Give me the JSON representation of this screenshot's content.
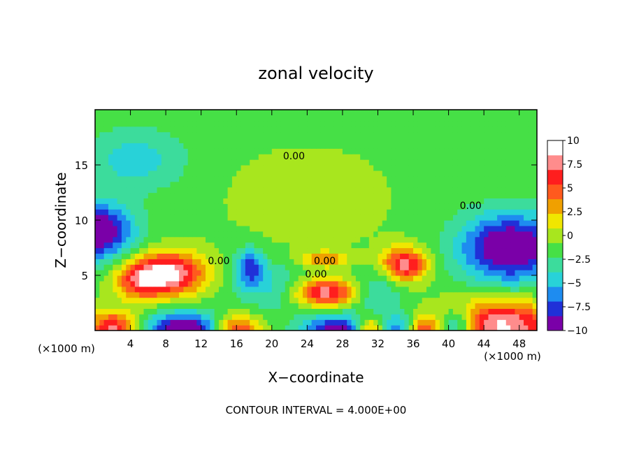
{
  "chart_data": {
    "type": "heatmap",
    "title": "zonal velocity",
    "xlabel": "X−coordinate",
    "ylabel": "Z−coordinate",
    "x_unit_left": "(×1000 m)",
    "x_unit_right": "(×1000 m)",
    "xlim": [
      0,
      50
    ],
    "ylim": [
      0,
      20
    ],
    "xticks": [
      4,
      8,
      12,
      16,
      20,
      24,
      28,
      32,
      36,
      40,
      44,
      48
    ],
    "yticks": [
      5,
      10,
      15
    ],
    "footer": "CONTOUR INTERVAL = 4.000E+00",
    "colorbar": {
      "min": -10,
      "max": 10,
      "ticks": [
        "10",
        "7.5",
        "5",
        "2.5",
        "0",
        "−2.5",
        "−5",
        "−7.5",
        "−10"
      ],
      "colors": [
        "#7a00a8",
        "#2030d8",
        "#1e8cf0",
        "#28d2d8",
        "#3cdc9c",
        "#46e046",
        "#a8e61e",
        "#f0e600",
        "#f0a000",
        "#ff5a1e",
        "#ff1e1e",
        "#ff8c8c",
        "#ffffff"
      ]
    },
    "contour_labels": [
      {
        "text": "0.00",
        "x": 22.5,
        "z": 15.5
      },
      {
        "text": "0.00",
        "x": 14.0,
        "z": 6.0
      },
      {
        "text": "0.00",
        "x": 26.0,
        "z": 6.0
      },
      {
        "text": "0.00",
        "x": 25.0,
        "z": 4.8
      },
      {
        "text": "0.00",
        "x": 42.5,
        "z": 11.0
      }
    ],
    "features": [
      {
        "x": 0.0,
        "z": 9.0,
        "u": -10,
        "sx": 3.0,
        "sz": 1.8
      },
      {
        "x": 8.5,
        "z": 5.2,
        "u": 10,
        "sx": 2.8,
        "sz": 1.4
      },
      {
        "x": 5.0,
        "z": 4.6,
        "u": 6,
        "sx": 2.0,
        "sz": 1.2
      },
      {
        "x": 10.0,
        "z": 0.0,
        "u": -10,
        "sx": 3.0,
        "sz": 1.2
      },
      {
        "x": 2.0,
        "z": 0.0,
        "u": 9,
        "sx": 2.0,
        "sz": 1.2
      },
      {
        "x": 16.0,
        "z": 0.0,
        "u": 8,
        "sx": 1.8,
        "sz": 1.0
      },
      {
        "x": 17.5,
        "z": 5.8,
        "u": -6,
        "sx": 1.2,
        "sz": 1.2
      },
      {
        "x": 26.0,
        "z": 3.5,
        "u": 9,
        "sx": 2.5,
        "sz": 0.9
      },
      {
        "x": 26.0,
        "z": 6.5,
        "u": 5,
        "sx": 2.0,
        "sz": 0.5
      },
      {
        "x": 35.0,
        "z": 6.0,
        "u": 9,
        "sx": 1.8,
        "sz": 1.1
      },
      {
        "x": 27.5,
        "z": 0.0,
        "u": -9,
        "sx": 2.8,
        "sz": 1.0
      },
      {
        "x": 31.0,
        "z": 0.0,
        "u": 8,
        "sx": 1.2,
        "sz": 0.9
      },
      {
        "x": 35.0,
        "z": 0.0,
        "u": -9,
        "sx": 1.5,
        "sz": 1.0
      },
      {
        "x": 36.5,
        "z": 0.0,
        "u": 9,
        "sx": 1.5,
        "sz": 0.9
      },
      {
        "x": 47.0,
        "z": 7.5,
        "u": -10,
        "sx": 4.0,
        "sz": 2.2
      },
      {
        "x": 46.0,
        "z": 0.5,
        "u": 10,
        "sx": 4.5,
        "sz": 1.6
      },
      {
        "x": 41.0,
        "z": 0.5,
        "u": -7,
        "sx": 1.5,
        "sz": 1.0
      },
      {
        "x": 4.5,
        "z": 15.5,
        "u": -3.5,
        "sx": 4.0,
        "sz": 2.0
      },
      {
        "x": 20.0,
        "z": 4.0,
        "u": -3,
        "sx": 3.0,
        "sz": 1.5
      },
      {
        "x": 32.0,
        "z": 3.5,
        "u": -3,
        "sx": 2.0,
        "sz": 1.5
      },
      {
        "x": 24.0,
        "z": 12.0,
        "u": 1.5,
        "sx": 6.0,
        "sz": 3.0
      }
    ],
    "base_value": -1.2
  }
}
